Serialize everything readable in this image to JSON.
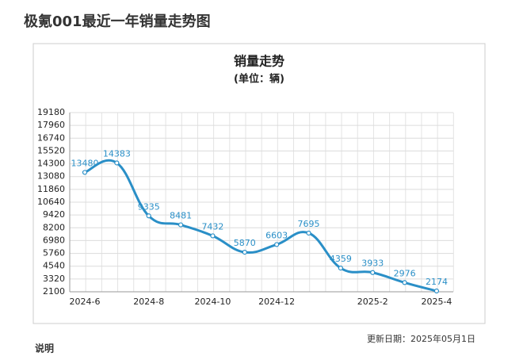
{
  "page_title": "极氪001最近一年销量走势图",
  "chart_data": {
    "type": "line",
    "title": "销量走势",
    "subtitle": "(单位：辆)",
    "categories": [
      "2024-6",
      null,
      "2024-8",
      null,
      "2024-10",
      null,
      "2024-12",
      null,
      null,
      "2025-2",
      null,
      "2025-4"
    ],
    "series": [
      {
        "name": "销量",
        "color": "#2a8fc7",
        "values": [
          13480,
          14383,
          9335,
          8481,
          7432,
          5870,
          6603,
          7695,
          4359,
          3933,
          2976,
          2174
        ]
      }
    ],
    "ylim": [
      2100,
      19180
    ],
    "yticks": [
      2100,
      3320,
      4540,
      5760,
      6980,
      8200,
      9420,
      10640,
      11860,
      13080,
      14300,
      15520,
      16740,
      17960,
      19180
    ],
    "grid": true
  },
  "update_date": "更新日期：2025年05月1日",
  "note_heading": "说明"
}
